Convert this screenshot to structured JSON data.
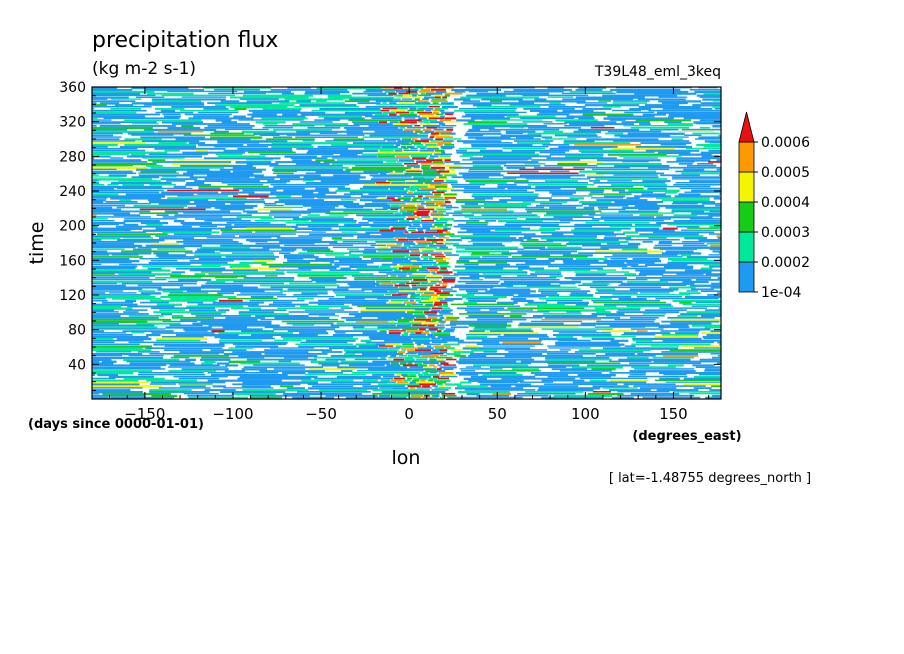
{
  "chart_data": {
    "type": "heatmap",
    "title": "precipitation flux",
    "units": "(kg m-2 s-1)",
    "dataset": "T39L48_eml_3keq",
    "xlabel": "lon",
    "xunits": "(degrees_east)",
    "ylabel": "time",
    "yunits": "(days since 0000-01-01)",
    "footnote": "[ lat=-1.48755 degrees_north ]",
    "xlim": [
      -180,
      177
    ],
    "ylim": [
      0,
      360
    ],
    "xticks": [
      -150,
      -100,
      -50,
      0,
      50,
      100,
      150
    ],
    "yticks": [
      40,
      80,
      120,
      160,
      200,
      240,
      280,
      320,
      360
    ],
    "xtick_labels": [
      "−150",
      "−100",
      "−50",
      "0",
      "50",
      "100",
      "150"
    ],
    "ytick_labels": [
      "40",
      "80",
      "120",
      "160",
      "200",
      "240",
      "280",
      "320",
      "360"
    ],
    "colorbar": {
      "levels": [
        0.0001,
        0.0002,
        0.0003,
        0.0004,
        0.0005,
        0.0006
      ],
      "labels": [
        "1e-04",
        "0.0002",
        "0.0003",
        "0.0004",
        "0.0005",
        "0.0006"
      ],
      "colors": [
        "#1e9bf0",
        "#00e89a",
        "#16cc16",
        "#f5f500",
        "#ff9900",
        "#e81010"
      ],
      "extend": "max"
    },
    "features": {
      "convective_band_center_lon": 0,
      "convective_band_halfwidth_lon": 20,
      "pattern": "westward-propagating streaks"
    }
  }
}
